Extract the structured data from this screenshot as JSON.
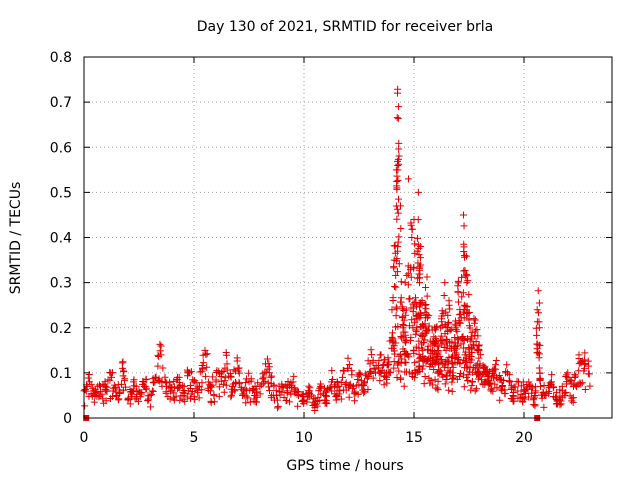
{
  "colors": {
    "series": "#e00000",
    "grid": "#a0a0a0",
    "axis": "#000000"
  },
  "chart_data": {
    "type": "scatter",
    "title": "Day 130 of 2021, SRMTID for receiver brla",
    "xlabel": "GPS time / hours",
    "ylabel": "SRMTID / TECUs",
    "xlim": [
      0,
      24
    ],
    "ylim": [
      0,
      0.8
    ],
    "xticks": [
      0,
      5,
      10,
      15,
      20
    ],
    "xtick_labels": [
      "0",
      "5",
      "10",
      "15",
      "20"
    ],
    "yticks": [
      0,
      0.1,
      0.2,
      0.3,
      0.4,
      0.5,
      0.6,
      0.7,
      0.8
    ],
    "ytick_labels": [
      "0",
      "0.1",
      "0.2",
      "0.3",
      "0.4",
      "0.5",
      "0.6",
      "0.7",
      "0.8"
    ],
    "grid": true,
    "marker": "+",
    "gap_markers": {
      "x": [
        0.1,
        20.6
      ],
      "y": 0
    },
    "series": [
      {
        "name": "SRMTID",
        "x": [
          0.0,
          0.25,
          0.5,
          0.75,
          1.0,
          1.25,
          1.5,
          1.75,
          2.0,
          2.25,
          2.5,
          2.75,
          3.0,
          3.25,
          3.5,
          3.75,
          4.0,
          4.25,
          4.5,
          4.75,
          5.0,
          5.25,
          5.5,
          5.75,
          6.0,
          6.25,
          6.5,
          6.75,
          7.0,
          7.25,
          7.5,
          7.75,
          8.0,
          8.25,
          8.5,
          8.75,
          9.0,
          9.25,
          9.5,
          9.75,
          10.0,
          10.25,
          10.5,
          10.75,
          11.0,
          11.25,
          11.5,
          11.75,
          12.0,
          12.25,
          12.5,
          12.75,
          13.0,
          13.25,
          13.5,
          13.75,
          14.0,
          14.1,
          14.2,
          14.25,
          14.3,
          14.4,
          14.5,
          14.6,
          14.75,
          14.9,
          15.0,
          15.1,
          15.2,
          15.25,
          15.3,
          15.4,
          15.5,
          15.6,
          15.75,
          15.9,
          16.0,
          16.1,
          16.25,
          16.4,
          16.5,
          16.6,
          16.75,
          16.9,
          17.0,
          17.1,
          17.25,
          17.3,
          17.4,
          17.5,
          17.6,
          17.75,
          17.9,
          18.0,
          18.25,
          18.5,
          18.75,
          19.0,
          19.25,
          19.5,
          19.75,
          20.0,
          20.25,
          20.5,
          20.6,
          20.7,
          20.75,
          21.0,
          21.25,
          21.5,
          21.75,
          22.0,
          22.25,
          22.5,
          22.75
        ],
        "y": [
          0.06,
          0.08,
          0.05,
          0.07,
          0.06,
          0.09,
          0.05,
          0.11,
          0.04,
          0.08,
          0.06,
          0.07,
          0.05,
          0.09,
          0.14,
          0.07,
          0.06,
          0.09,
          0.05,
          0.1,
          0.08,
          0.07,
          0.15,
          0.06,
          0.08,
          0.1,
          0.12,
          0.07,
          0.11,
          0.06,
          0.08,
          0.05,
          0.07,
          0.12,
          0.09,
          0.05,
          0.07,
          0.06,
          0.08,
          0.05,
          0.04,
          0.06,
          0.03,
          0.07,
          0.05,
          0.08,
          0.06,
          0.09,
          0.11,
          0.07,
          0.1,
          0.08,
          0.12,
          0.1,
          0.14,
          0.09,
          0.24,
          0.35,
          0.55,
          0.72,
          0.69,
          0.42,
          0.2,
          0.3,
          0.53,
          0.4,
          0.44,
          0.22,
          0.5,
          0.3,
          0.38,
          0.15,
          0.25,
          0.27,
          0.12,
          0.18,
          0.2,
          0.13,
          0.22,
          0.3,
          0.17,
          0.25,
          0.1,
          0.2,
          0.28,
          0.21,
          0.45,
          0.36,
          0.3,
          0.22,
          0.18,
          0.21,
          0.15,
          0.12,
          0.08,
          0.06,
          0.09,
          0.07,
          0.1,
          0.05,
          0.08,
          0.06,
          0.07,
          0.05,
          0.24,
          0.2,
          0.07,
          0.05,
          0.08,
          0.04,
          0.06,
          0.09,
          0.07,
          0.14,
          0.11
        ]
      }
    ]
  }
}
